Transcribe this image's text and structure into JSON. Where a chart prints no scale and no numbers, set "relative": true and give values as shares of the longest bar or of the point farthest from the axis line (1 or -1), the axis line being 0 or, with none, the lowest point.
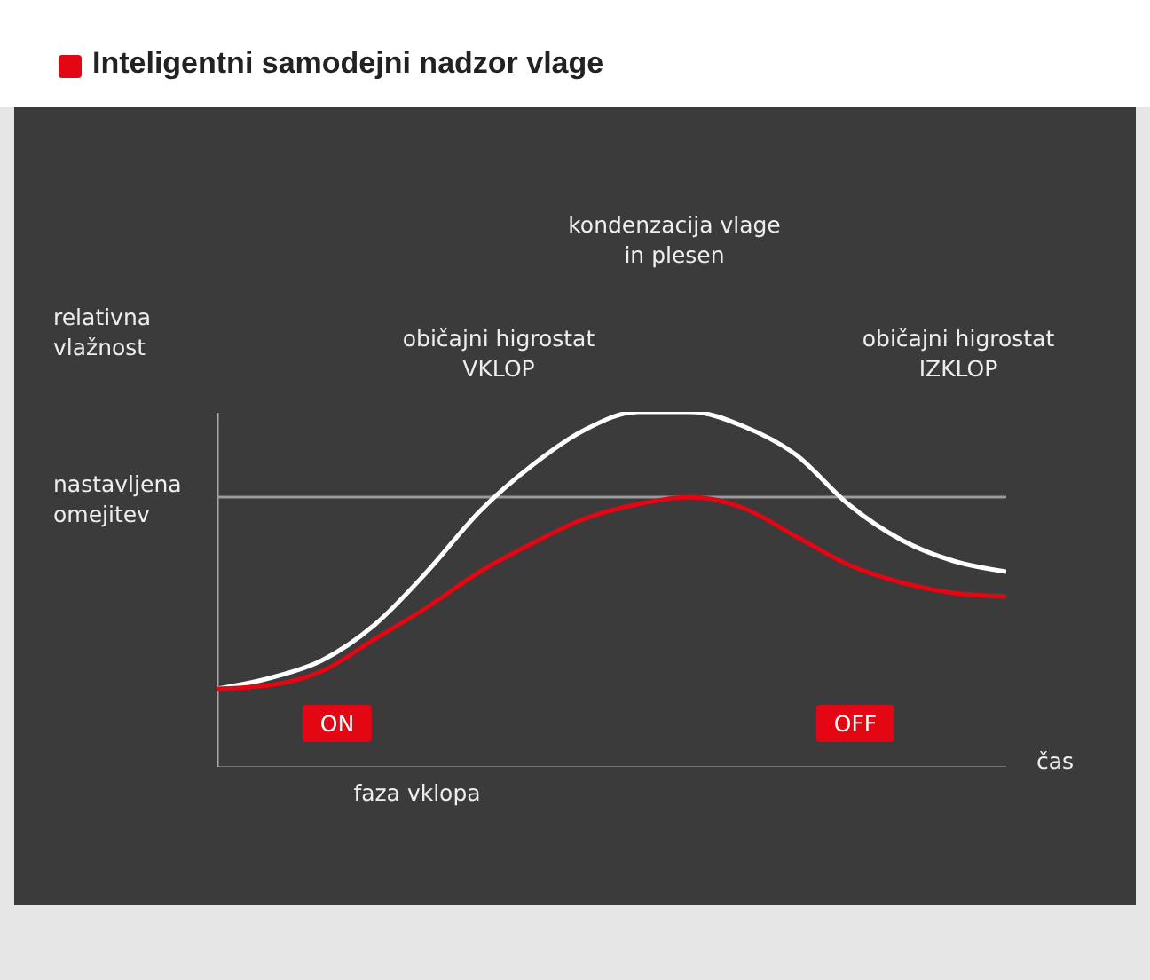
{
  "chart_data": {
    "type": "line",
    "title": "Inteligentni samodejni nadzor vlage",
    "ylabel": "relativna vlažnost",
    "xlabel": "čas",
    "relative": true,
    "categories": [
      null,
      null,
      null,
      null,
      null,
      null,
      null,
      null,
      null,
      null,
      null,
      null,
      null,
      null,
      null,
      null
    ],
    "series": [
      {
        "color": "#ffffff",
        "values": [
          0.22,
          0.25,
          0.3,
          0.4,
          0.55,
          0.72,
          0.85,
          0.95,
          1.0,
          1.0,
          0.96,
          0.88,
          0.74,
          0.64,
          0.58,
          0.55
        ]
      },
      {
        "color": "#e30613",
        "values": [
          0.22,
          0.23,
          0.27,
          0.36,
          0.45,
          0.55,
          0.63,
          0.7,
          0.74,
          0.76,
          0.73,
          0.65,
          0.57,
          0.52,
          0.49,
          0.48
        ]
      }
    ],
    "ref_lines": [
      {
        "axis": "y",
        "value": 0.76,
        "label": "nastavljena omejitev",
        "color": "#9a9a9a"
      }
    ],
    "annotations": [
      "kondenzacija vlage in plesen",
      "običajni higrostat VKLOP",
      "običajni higrostat IZKLOP",
      "ON",
      "OFF",
      "faza vklopa"
    ],
    "line_style": "solid"
  }
}
